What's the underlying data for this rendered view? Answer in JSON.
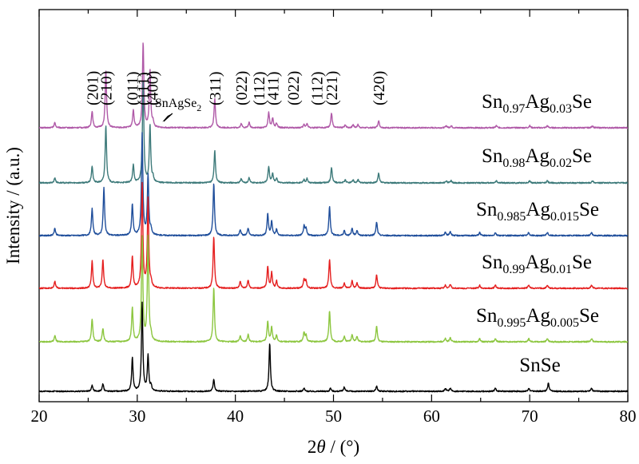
{
  "chart_data": {
    "type": "line",
    "xlabel_prefix": "2",
    "xlabel_theta": "θ",
    "xlabel_suffix": " / (°)",
    "ylabel": "Intensity / (a.u.)",
    "xlim": [
      20,
      80
    ],
    "x_ticks": [
      20,
      30,
      40,
      50,
      60,
      70,
      80
    ],
    "grid": false,
    "peak_labels": [
      {
        "text": "(201)",
        "x": 25.4
      },
      {
        "text": "(210)",
        "x": 26.8
      },
      {
        "text": "(011)",
        "x": 29.5
      },
      {
        "text": "(111)",
        "x": 30.6
      },
      {
        "text": "(400)",
        "x": 31.5
      },
      {
        "text": "(311)",
        "x": 37.9
      },
      {
        "text": "(022)",
        "x": 40.6
      },
      {
        "text": "(112)",
        "x": 42.4
      },
      {
        "text": "(411)",
        "x": 43.8
      },
      {
        "text": "(022)",
        "x": 45.9
      },
      {
        "text": "(112)",
        "x": 48.3
      },
      {
        "text": "(221)",
        "x": 49.8
      },
      {
        "text": "(420)",
        "x": 54.6
      }
    ],
    "annotation": {
      "main": "SnAgSe",
      "sub": "2",
      "x": 32.2
    },
    "series": [
      {
        "key": "s003",
        "color": "#b05aa8",
        "label": [
          {
            "t": "Sn"
          },
          {
            "t": "0.97",
            "s": true
          },
          {
            "t": "Ag"
          },
          {
            "t": "0.03",
            "s": true
          },
          {
            "t": "Se"
          }
        ],
        "peaks": [
          [
            21.6,
            0.05
          ],
          [
            25.4,
            0.16
          ],
          [
            26.8,
            0.55
          ],
          [
            29.6,
            0.17
          ],
          [
            30.6,
            0.82
          ],
          [
            31.3,
            0.55
          ],
          [
            31.6,
            0.05
          ],
          [
            37.9,
            0.28
          ],
          [
            40.6,
            0.04
          ],
          [
            41.4,
            0.05
          ],
          [
            43.4,
            0.15
          ],
          [
            43.8,
            0.09
          ],
          [
            44.2,
            0.04
          ],
          [
            47.0,
            0.03
          ],
          [
            47.3,
            0.04
          ],
          [
            49.8,
            0.14
          ],
          [
            51.2,
            0.03
          ],
          [
            52.0,
            0.03
          ],
          [
            52.5,
            0.03
          ],
          [
            54.6,
            0.07
          ],
          [
            61.5,
            0.02
          ],
          [
            62.0,
            0.02
          ],
          [
            66.6,
            0.02
          ],
          [
            70.0,
            0.02
          ],
          [
            71.8,
            0.02
          ],
          [
            76.4,
            0.02
          ]
        ]
      },
      {
        "key": "s002",
        "color": "#3d7a7a",
        "label": [
          {
            "t": "Sn"
          },
          {
            "t": "0.98",
            "s": true
          },
          {
            "t": "Ag"
          },
          {
            "t": "0.02",
            "s": true
          },
          {
            "t": "Se"
          }
        ],
        "peaks": [
          [
            21.6,
            0.05
          ],
          [
            25.4,
            0.16
          ],
          [
            26.8,
            0.55
          ],
          [
            29.6,
            0.17
          ],
          [
            30.6,
            0.98
          ],
          [
            31.3,
            0.55
          ],
          [
            31.6,
            0.05
          ],
          [
            37.9,
            0.31
          ],
          [
            40.6,
            0.04
          ],
          [
            41.4,
            0.05
          ],
          [
            43.4,
            0.16
          ],
          [
            43.8,
            0.09
          ],
          [
            44.2,
            0.04
          ],
          [
            47.0,
            0.03
          ],
          [
            47.3,
            0.04
          ],
          [
            49.8,
            0.15
          ],
          [
            51.2,
            0.03
          ],
          [
            52.0,
            0.03
          ],
          [
            52.5,
            0.03
          ],
          [
            54.6,
            0.09
          ],
          [
            61.5,
            0.02
          ],
          [
            62.0,
            0.02
          ],
          [
            66.6,
            0.02
          ],
          [
            70.0,
            0.02
          ],
          [
            71.8,
            0.02
          ],
          [
            76.4,
            0.02
          ]
        ]
      },
      {
        "key": "s0015",
        "color": "#1f4e9b",
        "label": [
          {
            "t": "Sn"
          },
          {
            "t": "0.985",
            "s": true
          },
          {
            "t": "Ag"
          },
          {
            "t": "0.015",
            "s": true
          },
          {
            "t": "Se"
          }
        ],
        "peaks": [
          [
            21.6,
            0.07
          ],
          [
            25.4,
            0.26
          ],
          [
            26.6,
            0.46
          ],
          [
            29.5,
            0.3
          ],
          [
            30.5,
            0.98
          ],
          [
            31.1,
            0.58
          ],
          [
            31.4,
            0.05
          ],
          [
            37.8,
            0.5
          ],
          [
            40.5,
            0.06
          ],
          [
            41.3,
            0.07
          ],
          [
            43.3,
            0.21
          ],
          [
            43.7,
            0.14
          ],
          [
            44.2,
            0.06
          ],
          [
            47.0,
            0.09
          ],
          [
            47.2,
            0.07
          ],
          [
            49.6,
            0.28
          ],
          [
            51.1,
            0.05
          ],
          [
            51.9,
            0.07
          ],
          [
            52.4,
            0.05
          ],
          [
            54.4,
            0.13
          ],
          [
            61.4,
            0.03
          ],
          [
            61.9,
            0.04
          ],
          [
            64.9,
            0.03
          ],
          [
            66.5,
            0.03
          ],
          [
            69.9,
            0.03
          ],
          [
            71.8,
            0.03
          ],
          [
            76.3,
            0.03
          ]
        ]
      },
      {
        "key": "s001",
        "color": "#e51f1f",
        "label": [
          {
            "t": "Sn"
          },
          {
            "t": "0.99",
            "s": true
          },
          {
            "t": "Ag"
          },
          {
            "t": "0.01",
            "s": true
          },
          {
            "t": "Se"
          }
        ],
        "peaks": [
          [
            21.6,
            0.07
          ],
          [
            25.4,
            0.26
          ],
          [
            26.5,
            0.28
          ],
          [
            29.5,
            0.3
          ],
          [
            30.5,
            1.0
          ],
          [
            31.1,
            0.85
          ],
          [
            31.4,
            0.05
          ],
          [
            37.8,
            0.5
          ],
          [
            40.5,
            0.07
          ],
          [
            41.3,
            0.08
          ],
          [
            43.3,
            0.21
          ],
          [
            43.7,
            0.15
          ],
          [
            44.2,
            0.07
          ],
          [
            47.0,
            0.09
          ],
          [
            47.2,
            0.07
          ],
          [
            49.6,
            0.28
          ],
          [
            51.1,
            0.05
          ],
          [
            51.9,
            0.07
          ],
          [
            52.4,
            0.05
          ],
          [
            54.4,
            0.13
          ],
          [
            61.4,
            0.03
          ],
          [
            61.9,
            0.04
          ],
          [
            64.9,
            0.03
          ],
          [
            66.5,
            0.03
          ],
          [
            69.9,
            0.03
          ],
          [
            71.8,
            0.03
          ],
          [
            76.3,
            0.03
          ]
        ]
      },
      {
        "key": "s0005",
        "color": "#8cc63f",
        "label": [
          {
            "t": "Sn"
          },
          {
            "t": "0.995",
            "s": true
          },
          {
            "t": "Ag"
          },
          {
            "t": "0.005",
            "s": true
          },
          {
            "t": "Se"
          }
        ],
        "peaks": [
          [
            21.6,
            0.06
          ],
          [
            25.4,
            0.22
          ],
          [
            26.5,
            0.13
          ],
          [
            29.5,
            0.33
          ],
          [
            30.5,
            1.0
          ],
          [
            31.1,
            1.0
          ],
          [
            31.4,
            0.05
          ],
          [
            37.8,
            0.52
          ],
          [
            40.5,
            0.06
          ],
          [
            41.3,
            0.07
          ],
          [
            43.3,
            0.2
          ],
          [
            43.7,
            0.14
          ],
          [
            44.2,
            0.06
          ],
          [
            47.0,
            0.09
          ],
          [
            47.2,
            0.06
          ],
          [
            49.6,
            0.3
          ],
          [
            51.1,
            0.05
          ],
          [
            51.9,
            0.07
          ],
          [
            52.4,
            0.05
          ],
          [
            54.4,
            0.15
          ],
          [
            61.4,
            0.03
          ],
          [
            61.9,
            0.04
          ],
          [
            64.9,
            0.03
          ],
          [
            66.5,
            0.03
          ],
          [
            69.9,
            0.03
          ],
          [
            71.8,
            0.03
          ],
          [
            76.3,
            0.03
          ]
        ]
      },
      {
        "key": "s0",
        "color": "#000000",
        "label": [
          {
            "t": "SnSe"
          }
        ],
        "peaks": [
          [
            25.4,
            0.06
          ],
          [
            26.5,
            0.07
          ],
          [
            29.5,
            0.32
          ],
          [
            30.5,
            0.85
          ],
          [
            31.1,
            0.34
          ],
          [
            31.4,
            0.05
          ],
          [
            37.8,
            0.12
          ],
          [
            43.5,
            0.46
          ],
          [
            47.0,
            0.03
          ],
          [
            49.7,
            0.03
          ],
          [
            51.1,
            0.04
          ],
          [
            54.4,
            0.05
          ],
          [
            61.4,
            0.03
          ],
          [
            61.9,
            0.03
          ],
          [
            66.5,
            0.03
          ],
          [
            69.9,
            0.03
          ],
          [
            71.9,
            0.08
          ],
          [
            76.3,
            0.03
          ]
        ]
      }
    ]
  }
}
